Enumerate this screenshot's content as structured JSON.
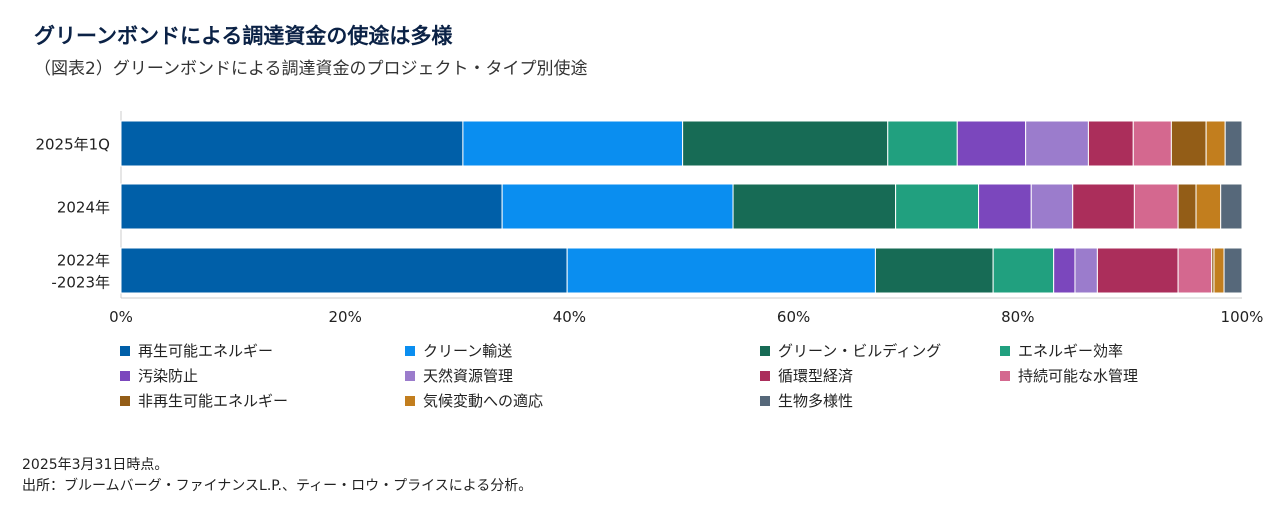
{
  "title": "グリーンボンドによる調達資金の使途は多様",
  "subtitle": "（図表2）グリーンボンドによる調達資金のプロジェクト・タイプ別使途",
  "chart_data": {
    "type": "bar",
    "orientation": "horizontal",
    "stacked": true,
    "categories": [
      "2025年1Q",
      "2024年",
      "2022年\n-2023年"
    ],
    "xlim": [
      0,
      100
    ],
    "xticks": [
      "0%",
      "20%",
      "40%",
      "60%",
      "80%",
      "100%"
    ],
    "legend_position": "bottom",
    "series": [
      {
        "name": "再生可能エネルギー",
        "color": "#005fa8",
        "values": [
          30.5,
          34.0,
          39.8
        ]
      },
      {
        "name": "クリーン輸送",
        "color": "#0a8ef0",
        "values": [
          19.6,
          20.6,
          27.5
        ]
      },
      {
        "name": "グリーン・ビルディング",
        "color": "#176b55",
        "values": [
          18.3,
          14.5,
          10.5
        ]
      },
      {
        "name": "エネルギー効率",
        "color": "#21a07f",
        "values": [
          6.2,
          7.4,
          5.4
        ]
      },
      {
        "name": "汚染防止",
        "color": "#7b47bd",
        "values": [
          6.1,
          4.7,
          1.9
        ]
      },
      {
        "name": "天然資源管理",
        "color": "#9b7ccc",
        "values": [
          5.6,
          3.7,
          2.0
        ]
      },
      {
        "name": "循環型経済",
        "color": "#ab2e5b",
        "values": [
          4.0,
          5.5,
          7.2
        ]
      },
      {
        "name": "持続可能な水管理",
        "color": "#d4688f",
        "values": [
          3.4,
          3.9,
          3.0
        ]
      },
      {
        "name": "非再生可能エネルギー",
        "color": "#935d17",
        "values": [
          3.1,
          1.6,
          0.2
        ]
      },
      {
        "name": "気候変動への適応",
        "color": "#c27e1e",
        "values": [
          1.7,
          2.2,
          0.9
        ]
      },
      {
        "name": "生物多様性",
        "color": "#56687a",
        "values": [
          1.5,
          1.9,
          1.6
        ]
      }
    ]
  },
  "notes": [
    "2025年3月31日時点。",
    "出所：ブルームバーグ・ファイナンスL.P.、ティー・ロウ・プライスによる分析。"
  ]
}
